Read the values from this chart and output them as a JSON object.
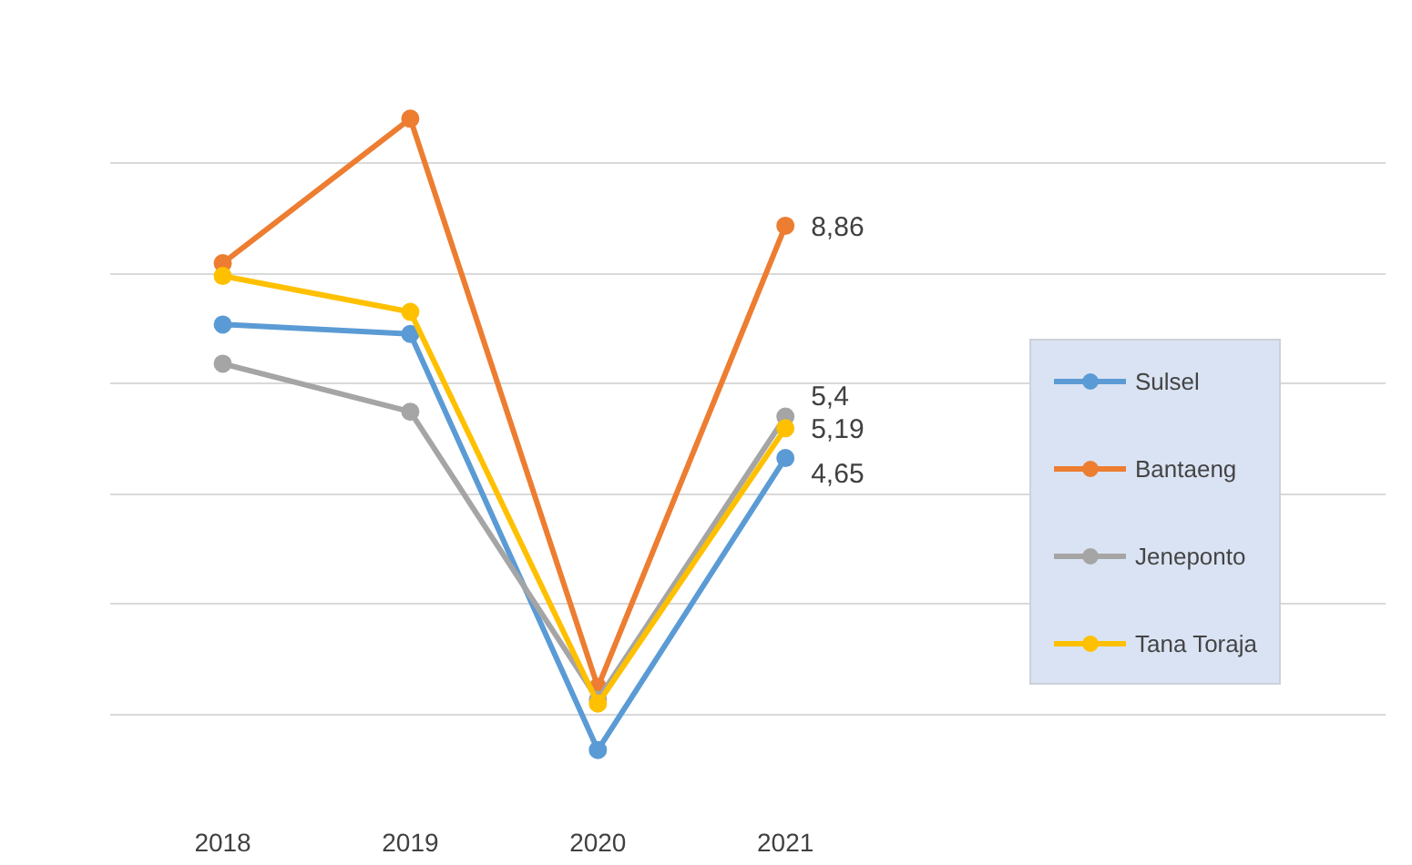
{
  "chart_data": {
    "type": "line",
    "categories": [
      "2018",
      "2019",
      "2020",
      "2021"
    ],
    "series": [
      {
        "name": "Sulsel",
        "color": "#5b9bd5",
        "values": [
          7.07,
          6.9,
          -0.64,
          4.65
        ],
        "value_labels": [
          null,
          null,
          null,
          "4,65"
        ]
      },
      {
        "name": "Bantaeng",
        "color": "#ed7d31",
        "values": [
          8.18,
          10.8,
          0.5,
          8.86
        ],
        "value_labels": [
          null,
          null,
          null,
          "8,86"
        ]
      },
      {
        "name": "Jeneponto",
        "color": "#a5a5a5",
        "values": [
          6.36,
          5.49,
          0.27,
          5.4
        ],
        "value_labels": [
          null,
          null,
          null,
          "5,4"
        ]
      },
      {
        "name": "Tana Toraja",
        "color": "#ffc000",
        "values": [
          7.95,
          7.3,
          0.2,
          5.19
        ],
        "value_labels": [
          null,
          null,
          null,
          "5,19"
        ]
      }
    ],
    "tick_labels": "x",
    "grid": "y",
    "legend": "right",
    "marker": "circle",
    "line_style": "solid"
  }
}
